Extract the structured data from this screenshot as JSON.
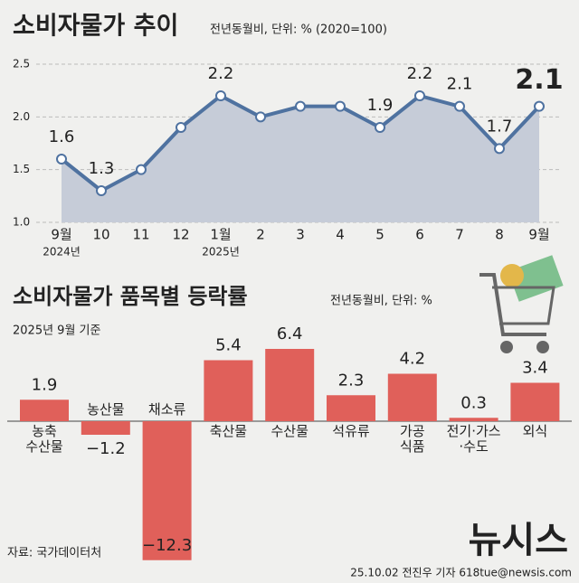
{
  "chart_data": [
    {
      "type": "line",
      "title": "소비자물가 추이",
      "subtitle": "전년동월비, 단위: % (2020=100)",
      "categories": [
        "9월",
        "10",
        "11",
        "12",
        "1월",
        "2",
        "3",
        "4",
        "5",
        "6",
        "7",
        "8",
        "9월"
      ],
      "year_labels": [
        "2024년",
        null,
        null,
        null,
        "2025년",
        null,
        null,
        null,
        null,
        null,
        null,
        null,
        null
      ],
      "values": [
        1.6,
        1.3,
        1.5,
        1.9,
        2.2,
        2.0,
        2.1,
        2.1,
        1.9,
        2.2,
        2.1,
        1.7,
        2.1
      ],
      "value_labels": [
        "1.6",
        "1.3",
        null,
        null,
        "2.2",
        null,
        null,
        null,
        "1.9",
        "2.2",
        "2.1",
        "1.7",
        "2.1"
      ],
      "ylim": [
        1.0,
        2.5
      ],
      "yticks": [
        {
          "value": 1,
          "label": "1.0"
        },
        1.5,
        {
          "value": 2,
          "label": "2.0"
        },
        2.5
      ],
      "grid": true,
      "color": "#4f72a0",
      "area_color": "#c6ccd8"
    },
    {
      "type": "bar",
      "title": "소비자물가 품목별 등락률",
      "subtitle": "전년동월비, 단위: %",
      "note": "2025년 9월 기준",
      "categories": [
        "농축\n수산물",
        "농산물",
        "채소류",
        "축산물",
        "수산물",
        "석유류",
        "가공\n식품",
        "전기·가스\n·수도",
        "외식"
      ],
      "values": [
        1.9,
        -1.2,
        -12.3,
        5.4,
        6.4,
        2.3,
        4.2,
        0.3,
        3.4
      ],
      "value_labels": [
        "1.9",
        "−1.2",
        "−12.3",
        "5.4",
        "6.4",
        "2.3",
        "4.2",
        "0.3",
        "3.4"
      ],
      "color": "#e0605a"
    }
  ],
  "footer": {
    "source": "자료: 국가데이터처",
    "credit": "25.10.02 전진우 기자 618tue@newsis.com",
    "logo": "뉴시스"
  }
}
